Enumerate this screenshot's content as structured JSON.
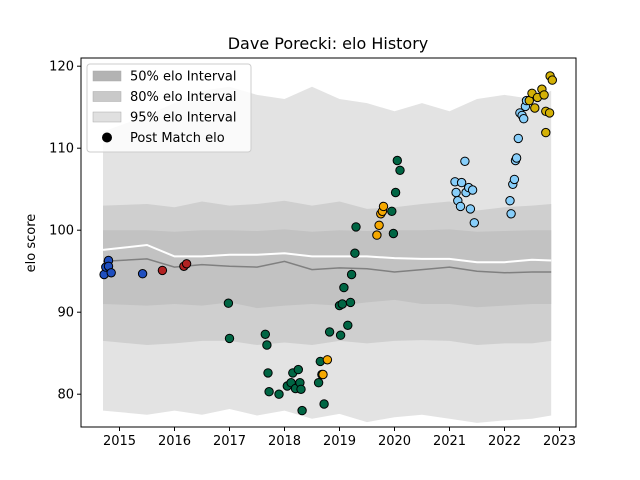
{
  "chart_data": {
    "type": "scatter",
    "title": "Dave Porecki: elo History",
    "xlabel": "",
    "ylabel": "elo score",
    "xlim": [
      2014.3,
      2023.3
    ],
    "ylim": [
      76,
      121
    ],
    "x_ticks": [
      2015,
      2016,
      2017,
      2018,
      2019,
      2020,
      2021,
      2022,
      2023
    ],
    "y_ticks": [
      80,
      90,
      100,
      110,
      120
    ],
    "grid": false,
    "legend_position": "top-left",
    "legend": [
      {
        "label": "50% elo Interval",
        "kind": "band",
        "color": "#b3b3b3"
      },
      {
        "label": "80% elo Interval",
        "kind": "band",
        "color": "#c9c9c9"
      },
      {
        "label": "95% elo Interval",
        "kind": "band",
        "color": "#e0e0e0"
      },
      {
        "label": "Post Match elo",
        "kind": "marker",
        "color": "#000000"
      }
    ],
    "bands": {
      "x": [
        2014.7,
        2015.5,
        2016.0,
        2016.5,
        2017.0,
        2017.5,
        2018.0,
        2018.5,
        2019.0,
        2019.5,
        2020.0,
        2020.5,
        2021.0,
        2021.5,
        2022.0,
        2022.5,
        2022.85
      ],
      "p95_upper": [
        112.0,
        114.0,
        115.5,
        117.0,
        117.5,
        116.5,
        116.0,
        117.5,
        116.0,
        115.5,
        114.5,
        115.5,
        114.5,
        116.0,
        116.5,
        116.0,
        117.0
      ],
      "p80_upper": [
        103.0,
        103.2,
        102.8,
        103.5,
        103.0,
        103.2,
        103.6,
        103.0,
        103.5,
        102.6,
        102.8,
        103.2,
        103.5,
        102.4,
        102.8,
        103.0,
        103.2
      ],
      "p50_upper": [
        100.0,
        100.0,
        99.8,
        100.0,
        100.0,
        99.9,
        100.1,
        99.8,
        100.0,
        99.9,
        100.0,
        100.0,
        100.1,
        99.8,
        99.9,
        100.0,
        100.0
      ],
      "p50_lower": [
        91.0,
        90.8,
        91.0,
        90.8,
        91.2,
        90.5,
        90.8,
        91.0,
        90.8,
        91.2,
        91.5,
        91.0,
        91.0,
        90.6,
        90.8,
        91.0,
        91.0
      ],
      "p80_lower": [
        86.5,
        86.0,
        86.2,
        86.5,
        86.5,
        86.0,
        86.3,
        86.0,
        86.5,
        86.2,
        86.5,
        86.6,
        86.5,
        86.0,
        86.2,
        86.2,
        86.5
      ],
      "p95_lower": [
        78.0,
        77.5,
        78.0,
        77.5,
        78.2,
        77.4,
        78.0,
        77.0,
        77.6,
        76.6,
        77.2,
        77.5,
        77.0,
        76.5,
        76.8,
        77.0,
        77.4
      ]
    },
    "lines": [
      {
        "color": "#ffffff",
        "width": 2,
        "x": [
          2014.7,
          2015.5,
          2016.0,
          2016.5,
          2017.0,
          2017.5,
          2018.0,
          2018.5,
          2019.0,
          2019.5,
          2020.0,
          2020.5,
          2021.0,
          2021.5,
          2022.0,
          2022.5,
          2022.85
        ],
        "y": [
          97.6,
          98.2,
          96.8,
          96.8,
          97.0,
          97.0,
          97.2,
          96.8,
          96.8,
          96.8,
          96.6,
          96.5,
          96.5,
          96.1,
          96.1,
          96.4,
          96.3
        ]
      },
      {
        "color": "#808080",
        "width": 1.5,
        "x": [
          2014.7,
          2015.5,
          2016.0,
          2016.5,
          2017.0,
          2017.5,
          2018.0,
          2018.5,
          2019.0,
          2019.5,
          2020.0,
          2020.5,
          2021.0,
          2021.5,
          2022.0,
          2022.5,
          2022.85
        ],
        "y": [
          96.2,
          96.5,
          95.5,
          95.8,
          95.6,
          95.5,
          96.2,
          95.2,
          95.4,
          95.3,
          94.9,
          95.2,
          95.5,
          95.0,
          94.8,
          94.9,
          94.9
        ]
      }
    ],
    "series": [
      {
        "color": "#1f4fbf",
        "points": [
          [
            2014.72,
            94.6
          ],
          [
            2014.75,
            95.5
          ],
          [
            2014.8,
            96.3
          ],
          [
            2014.8,
            95.6
          ],
          [
            2014.85,
            94.8
          ],
          [
            2015.42,
            94.7
          ]
        ]
      },
      {
        "color": "#b22222",
        "points": [
          [
            2015.78,
            95.1
          ],
          [
            2016.17,
            95.6
          ],
          [
            2016.22,
            95.9
          ]
        ]
      },
      {
        "color": "#006644",
        "points": [
          [
            2016.98,
            91.1
          ],
          [
            2017.0,
            86.8
          ],
          [
            2017.65,
            87.3
          ],
          [
            2017.68,
            86.0
          ],
          [
            2017.7,
            82.6
          ],
          [
            2017.72,
            80.3
          ],
          [
            2017.9,
            80.0
          ],
          [
            2018.05,
            81.0
          ],
          [
            2018.12,
            81.4
          ],
          [
            2018.15,
            82.6
          ],
          [
            2018.2,
            80.7
          ],
          [
            2018.25,
            83.0
          ],
          [
            2018.28,
            81.4
          ],
          [
            2018.3,
            80.6
          ],
          [
            2018.32,
            78.0
          ],
          [
            2018.62,
            81.4
          ],
          [
            2018.65,
            84.0
          ],
          [
            2018.68,
            82.4
          ],
          [
            2018.72,
            78.8
          ],
          [
            2018.82,
            87.6
          ],
          [
            2019.0,
            90.8
          ],
          [
            2019.02,
            87.2
          ],
          [
            2019.05,
            91.0
          ],
          [
            2019.08,
            93.0
          ],
          [
            2019.15,
            88.4
          ],
          [
            2019.2,
            91.2
          ],
          [
            2019.22,
            94.6
          ],
          [
            2019.28,
            97.2
          ],
          [
            2019.3,
            100.4
          ],
          [
            2019.95,
            102.3
          ],
          [
            2019.98,
            99.6
          ],
          [
            2020.02,
            104.6
          ],
          [
            2020.05,
            108.5
          ],
          [
            2020.1,
            107.3
          ]
        ]
      },
      {
        "color": "#f5a800",
        "points": [
          [
            2018.7,
            82.4
          ],
          [
            2018.78,
            84.2
          ],
          [
            2019.68,
            99.4
          ],
          [
            2019.72,
            100.6
          ],
          [
            2019.75,
            102.0
          ],
          [
            2019.78,
            102.3
          ],
          [
            2019.8,
            102.9
          ]
        ]
      },
      {
        "color": "#87cefa",
        "points": [
          [
            2021.1,
            105.9
          ],
          [
            2021.12,
            104.6
          ],
          [
            2021.15,
            103.6
          ],
          [
            2021.2,
            102.9
          ],
          [
            2021.22,
            105.8
          ],
          [
            2021.28,
            108.4
          ],
          [
            2021.3,
            104.6
          ],
          [
            2021.35,
            105.2
          ],
          [
            2021.38,
            102.6
          ],
          [
            2021.42,
            104.9
          ],
          [
            2021.45,
            100.9
          ],
          [
            2022.1,
            103.6
          ],
          [
            2022.12,
            102.0
          ],
          [
            2022.15,
            105.6
          ],
          [
            2022.18,
            106.2
          ],
          [
            2022.2,
            108.5
          ],
          [
            2022.22,
            108.8
          ],
          [
            2022.25,
            111.2
          ],
          [
            2022.28,
            114.3
          ],
          [
            2022.32,
            114.0
          ],
          [
            2022.35,
            113.6
          ],
          [
            2022.38,
            115.1
          ],
          [
            2022.4,
            115.8
          ]
        ]
      },
      {
        "color": "#d4b106",
        "points": [
          [
            2022.45,
            115.8
          ],
          [
            2022.5,
            116.7
          ],
          [
            2022.55,
            114.9
          ],
          [
            2022.6,
            116.2
          ],
          [
            2022.68,
            117.2
          ],
          [
            2022.72,
            116.5
          ],
          [
            2022.75,
            114.5
          ],
          [
            2022.75,
            111.9
          ],
          [
            2022.82,
            114.3
          ],
          [
            2022.83,
            118.8
          ],
          [
            2022.87,
            118.3
          ]
        ]
      }
    ]
  }
}
